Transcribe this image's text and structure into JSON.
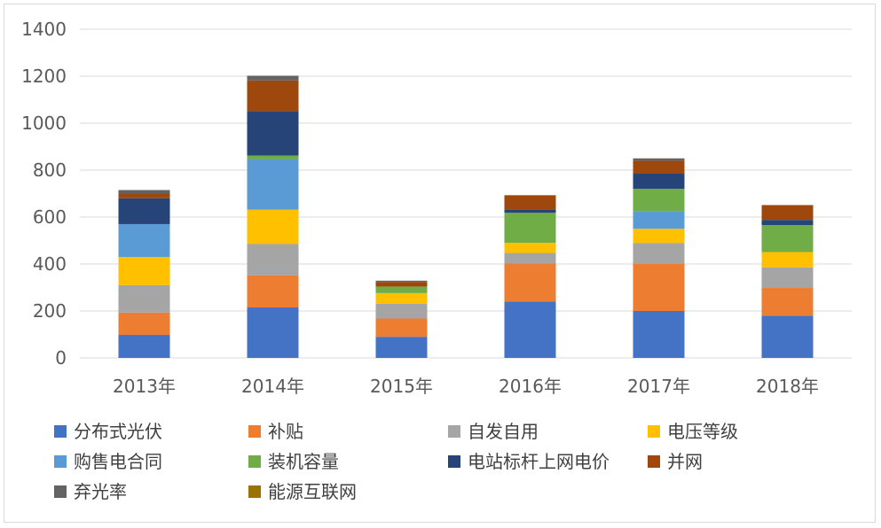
{
  "chart_data": {
    "type": "bar",
    "stacked": true,
    "title": "",
    "xlabel": "",
    "ylabel": "",
    "ylim": [
      0,
      1400
    ],
    "yticks": [
      0,
      200,
      400,
      600,
      800,
      1000,
      1200,
      1400
    ],
    "grid": true,
    "legend_position": "bottom",
    "categories": [
      "2013年",
      "2014年",
      "2015年",
      "2016年",
      "2017年",
      "2018年"
    ],
    "series": [
      {
        "name": "分布式光伏",
        "color": "#4472c4",
        "values": [
          98,
          215,
          90,
          240,
          200,
          180
        ]
      },
      {
        "name": "补贴",
        "color": "#ed7d31",
        "values": [
          95,
          137,
          78,
          162,
          203,
          118
        ]
      },
      {
        "name": "自发自用",
        "color": "#a5a5a5",
        "values": [
          117,
          133,
          63,
          45,
          87,
          88
        ]
      },
      {
        "name": "电压等级",
        "color": "#ffc000",
        "values": [
          120,
          147,
          45,
          43,
          60,
          65
        ]
      },
      {
        "name": "购售电合同",
        "color": "#5b9bd5",
        "values": [
          140,
          215,
          0,
          0,
          75,
          0
        ]
      },
      {
        "name": "装机容量",
        "color": "#70ad47",
        "values": [
          0,
          15,
          28,
          128,
          95,
          115
        ]
      },
      {
        "name": "电站标杆上网电价",
        "color": "#264478",
        "values": [
          110,
          190,
          0,
          15,
          65,
          22
        ]
      },
      {
        "name": "并网",
        "color": "#9e480e",
        "values": [
          20,
          130,
          20,
          60,
          55,
          63
        ]
      },
      {
        "name": "弃光率",
        "color": "#636363",
        "values": [
          15,
          20,
          5,
          0,
          10,
          0
        ]
      },
      {
        "name": "能源互联网",
        "color": "#997300",
        "values": [
          0,
          0,
          0,
          0,
          0,
          0
        ]
      }
    ]
  }
}
